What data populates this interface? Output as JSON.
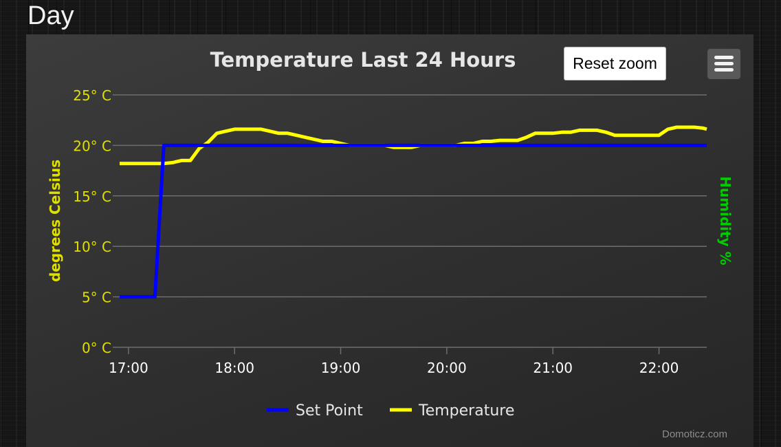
{
  "page": {
    "section_title": "Day"
  },
  "toolbar": {
    "reset_zoom_label": "Reset zoom",
    "menu_icon": "hamburger-menu-icon"
  },
  "credits": "Domoticz.com",
  "colors": {
    "temperature": "#ffff00",
    "set_point": "#0000ff",
    "left_axis": "#e0e000",
    "humidity_axis": "#00cc00",
    "gridlines": "#6e6e6e",
    "title": "#e6e6e6",
    "x_tick_labels": "#ffffff"
  },
  "chart_data": {
    "type": "line",
    "title": "Temperature Last 24 Hours",
    "xlabel": "",
    "ylabel": "degrees Celsius",
    "y2label": "Humidity %",
    "xlim": [
      "16:55",
      "22:27"
    ],
    "ylim": [
      0,
      25
    ],
    "x_ticks": [
      "17:00",
      "18:00",
      "19:00",
      "20:00",
      "21:00",
      "22:00"
    ],
    "y_ticks": [
      "0° C",
      "5° C",
      "10° C",
      "15° C",
      "20° C",
      "25° C"
    ],
    "grid": true,
    "legend_position": "bottom-center",
    "series": [
      {
        "name": "Set Point",
        "color": "#0000ff",
        "x": [
          "16:55",
          "17:15",
          "17:20",
          "22:27"
        ],
        "y": [
          5,
          5,
          20,
          20
        ]
      },
      {
        "name": "Temperature",
        "color": "#ffff00",
        "x": [
          "16:55",
          "17:00",
          "17:10",
          "17:20",
          "17:25",
          "17:30",
          "17:35",
          "17:40",
          "17:45",
          "17:50",
          "17:55",
          "18:00",
          "18:05",
          "18:10",
          "18:15",
          "18:20",
          "18:25",
          "18:30",
          "18:35",
          "18:40",
          "18:45",
          "18:50",
          "18:55",
          "19:00",
          "19:05",
          "19:10",
          "19:15",
          "19:20",
          "19:25",
          "19:30",
          "19:35",
          "19:40",
          "19:45",
          "19:50",
          "19:55",
          "20:00",
          "20:05",
          "20:10",
          "20:15",
          "20:20",
          "20:25",
          "20:30",
          "20:35",
          "20:40",
          "20:45",
          "20:50",
          "20:55",
          "21:00",
          "21:05",
          "21:10",
          "21:15",
          "21:20",
          "21:25",
          "21:30",
          "21:35",
          "21:40",
          "21:45",
          "21:50",
          "21:55",
          "22:00",
          "22:05",
          "22:10",
          "22:15",
          "22:20",
          "22:25",
          "22:27"
        ],
        "y": [
          18.2,
          18.2,
          18.2,
          18.2,
          18.3,
          18.5,
          18.5,
          19.7,
          20.3,
          21.2,
          21.4,
          21.6,
          21.6,
          21.6,
          21.6,
          21.4,
          21.2,
          21.2,
          21.0,
          20.8,
          20.6,
          20.4,
          20.4,
          20.2,
          20.0,
          20.0,
          20.0,
          20.0,
          20.0,
          19.8,
          19.8,
          19.8,
          20.0,
          20.0,
          20.0,
          20.0,
          20.0,
          20.2,
          20.2,
          20.4,
          20.4,
          20.5,
          20.5,
          20.5,
          20.8,
          21.2,
          21.2,
          21.2,
          21.3,
          21.3,
          21.5,
          21.5,
          21.5,
          21.3,
          21.0,
          21.0,
          21.0,
          21.0,
          21.0,
          21.0,
          21.6,
          21.8,
          21.8,
          21.8,
          21.7,
          21.6
        ]
      }
    ]
  }
}
